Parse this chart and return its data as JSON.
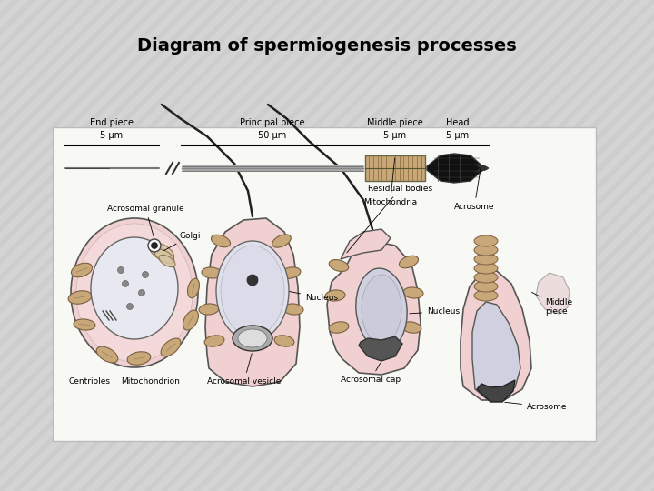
{
  "title": "Diagram of spermiogenesis processes",
  "title_fontsize": 14,
  "title_fontweight": "bold",
  "title_fontstyle": "normal",
  "bg_stripe_color1": "#e8e8e8",
  "bg_stripe_color2": "#d8d8d8",
  "box_facecolor": "#f5f5f0",
  "box_edgecolor": "#cccccc",
  "cell_outer": "#f0d0d0",
  "cell_nucleus": "#e0e0e8",
  "cell_organelle": "#c8a878",
  "cell_dark": "#303030",
  "cell_line": "#404040",
  "labels": {
    "acrosomal_granule": "Acrosomal granule",
    "acrosomal_vesicle": "Acrosomal vesicle",
    "acrosomal_cap": "Acrosomal cap",
    "acrosome": "Acrosome",
    "golgi": "Golgi",
    "nucleus1": "Nucleus",
    "nucleus2": "Nucleus",
    "centrioles": "Centrioles",
    "mitochondrion": "Mitochondrion",
    "middle_piece_label": "Middle\npiece",
    "residual_bodies": "Residual bodies",
    "mitochondria": "Mitochondria",
    "acrosome_bottom": "Acrosome",
    "end_piece": "End piece",
    "principal_piece": "Principal piece",
    "middle_piece": "Middle piece",
    "head": "Head",
    "scale_5um_1": "5 µm",
    "scale_50um": "50 µm",
    "scale_5um_2": "5 µm",
    "scale_5um_3": "5 µm"
  }
}
